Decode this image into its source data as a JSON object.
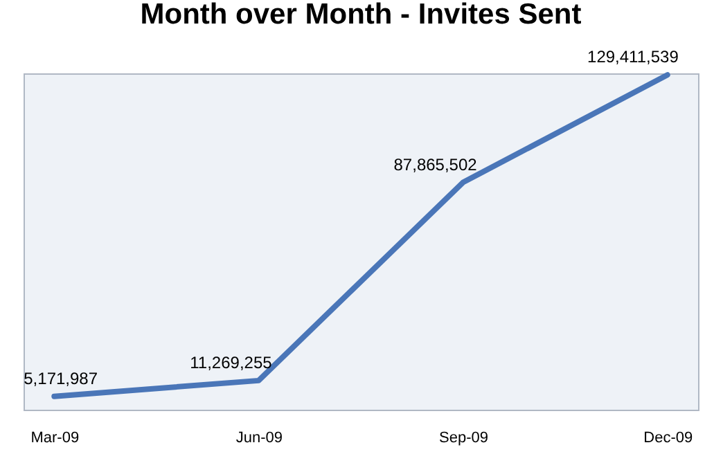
{
  "chart_data": {
    "type": "line",
    "title": "Month over Month - Invites Sent",
    "categories": [
      "Mar-09",
      "Jun-09",
      "Sep-09",
      "Dec-09"
    ],
    "series": [
      {
        "color": "#4a76b8",
        "values": [
          5171987,
          11269255,
          87865502,
          129411539
        ],
        "value_labels": [
          "5,171,987",
          "11,269,255",
          "87,865,502",
          "129,411,539"
        ]
      }
    ],
    "tick_labels": "x",
    "grid": false,
    "legend": false,
    "marker": "none",
    "line_style": "solid"
  }
}
